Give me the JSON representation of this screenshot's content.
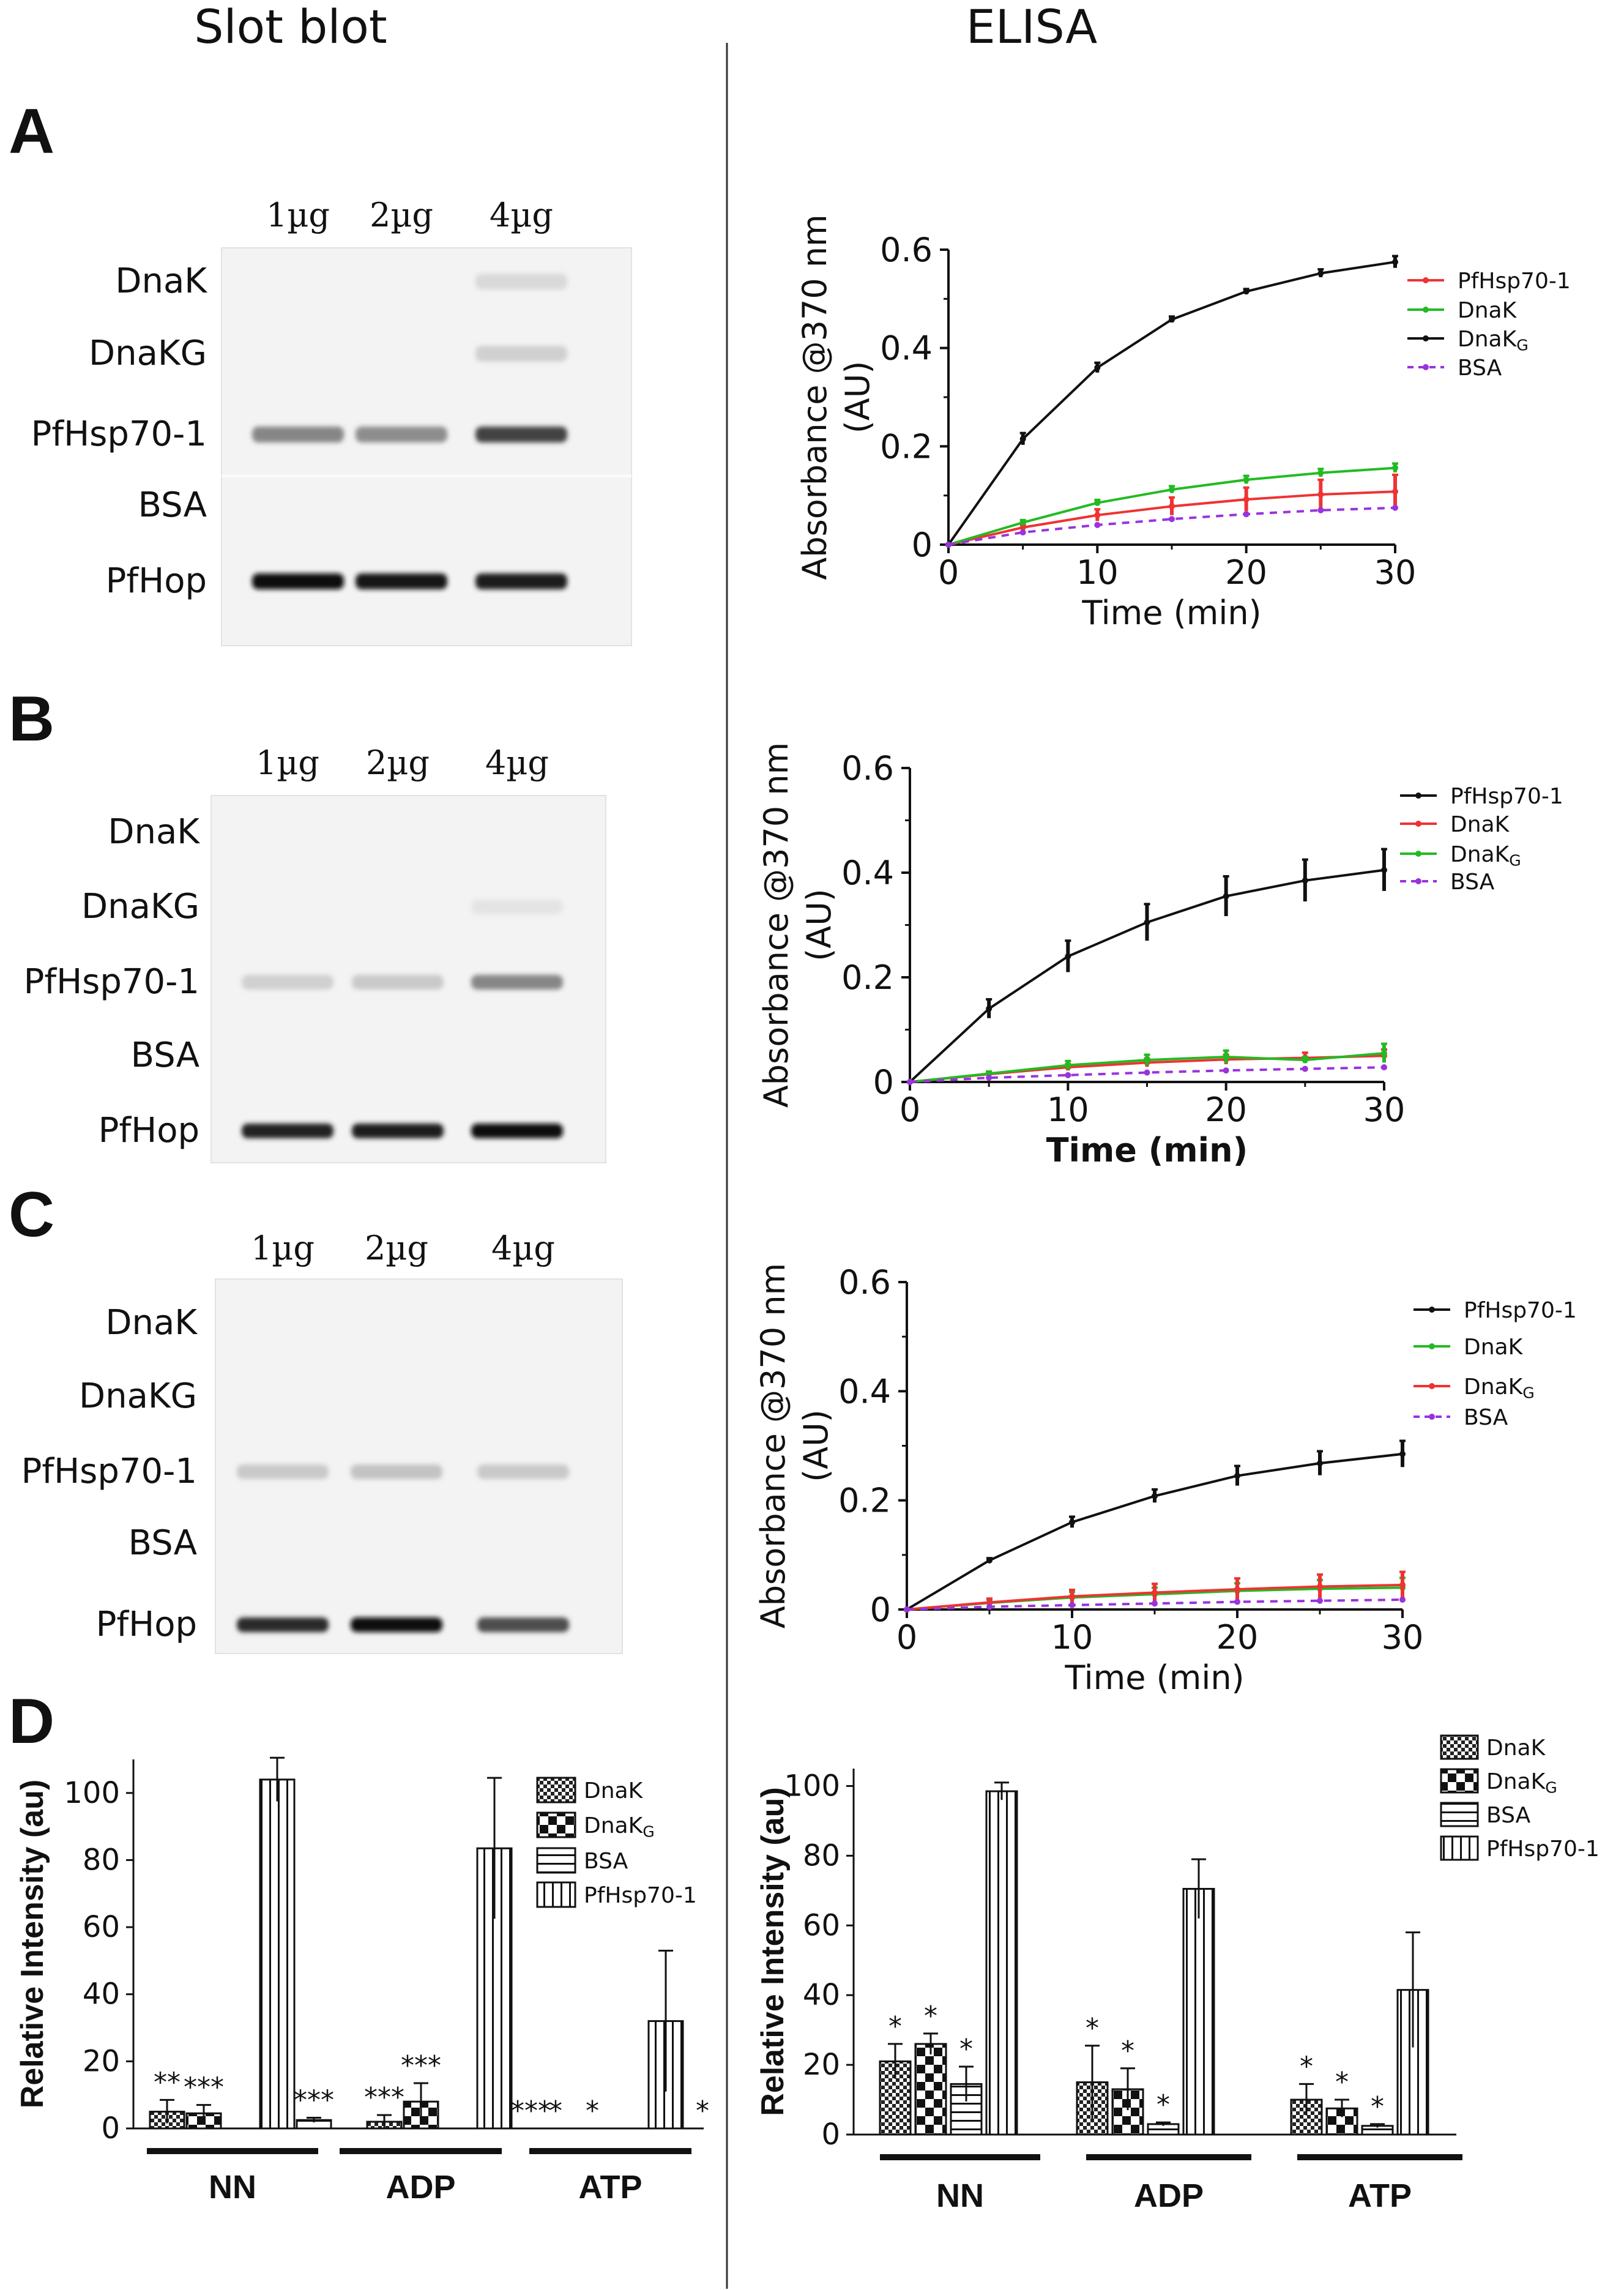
{
  "headers": {
    "left": "Slot blot",
    "right": "ELISA"
  },
  "panels": {
    "A": {
      "label": "A",
      "blot": {
        "amounts": [
          "1µg",
          "2µg",
          "4µg"
        ],
        "rows": [
          "DnaK",
          "DnaKG",
          "PfHsp70-1",
          "BSA",
          "PfHop"
        ],
        "intensity": [
          [
            0,
            0,
            0.08
          ],
          [
            0,
            0,
            0.12
          ],
          [
            0.45,
            0.42,
            0.75
          ],
          [
            0,
            0,
            0
          ],
          [
            1.0,
            0.95,
            0.92
          ]
        ]
      }
    },
    "B": {
      "label": "B",
      "blot": {
        "amounts": [
          "1µg",
          "2µg",
          "4µg"
        ],
        "rows": [
          "DnaK",
          "DnaKG",
          "PfHsp70-1",
          "BSA",
          "PfHop"
        ],
        "intensity": [
          [
            0,
            0,
            0
          ],
          [
            0,
            0,
            0.03
          ],
          [
            0.12,
            0.15,
            0.45
          ],
          [
            0,
            0,
            0
          ],
          [
            0.9,
            0.92,
            0.98
          ]
        ]
      }
    },
    "C": {
      "label": "C",
      "blot": {
        "amounts": [
          "1µg",
          "2µg",
          "4µg"
        ],
        "rows": [
          "DnaK",
          "DnaKG",
          "PfHsp70-1",
          "BSA",
          "PfHop"
        ],
        "intensity": [
          [
            0,
            0,
            0
          ],
          [
            0,
            0,
            0
          ],
          [
            0.15,
            0.18,
            0.15
          ],
          [
            0,
            0,
            0
          ],
          [
            0.85,
            0.98,
            0.7
          ]
        ]
      }
    },
    "D": {
      "label": "D"
    }
  },
  "chart_data": [
    {
      "id": "A-elisa",
      "type": "line",
      "xlabel": "Time (min)",
      "ylabel": "Absorbance @370 nm",
      "ylabel2": "(AU)",
      "x": [
        0,
        5,
        10,
        15,
        20,
        25,
        30
      ],
      "xlim": [
        0,
        30
      ],
      "ylim": [
        0,
        0.6
      ],
      "xticks": [
        0,
        10,
        20,
        30
      ],
      "yticks": [
        0,
        0.2,
        0.4,
        0.6
      ],
      "ytick_labels": [
        "0",
        "0.2",
        "0.4",
        "0.6"
      ],
      "series": [
        {
          "name": "PfHsp70-1",
          "sub": "",
          "color": "#ee3333",
          "dash": false,
          "values": [
            0,
            0.035,
            0.06,
            0.078,
            0.092,
            0.102,
            0.108
          ],
          "err": [
            0,
            0.006,
            0.012,
            0.018,
            0.024,
            0.03,
            0.034
          ]
        },
        {
          "name": "DnaK",
          "sub": "",
          "color": "#22bb22",
          "dash": false,
          "values": [
            0,
            0.045,
            0.085,
            0.112,
            0.132,
            0.146,
            0.156
          ],
          "err": [
            0,
            0.005,
            0.006,
            0.007,
            0.008,
            0.008,
            0.009
          ]
        },
        {
          "name": "DnaK",
          "sub": "G",
          "color": "#111111",
          "dash": false,
          "values": [
            0,
            0.215,
            0.36,
            0.458,
            0.515,
            0.552,
            0.575
          ],
          "err": [
            0,
            0.012,
            0.01,
            0.006,
            0.005,
            0.008,
            0.012
          ]
        },
        {
          "name": "BSA",
          "sub": "",
          "color": "#9933dd",
          "dash": true,
          "values": [
            0,
            0.025,
            0.04,
            0.052,
            0.062,
            0.07,
            0.075
          ],
          "err": [
            0,
            0,
            0,
            0,
            0,
            0,
            0
          ]
        }
      ]
    },
    {
      "id": "B-elisa",
      "type": "line",
      "xlabel": "Time (min)",
      "xlabel_bold": true,
      "ylabel": "Absorbance @370 nm",
      "ylabel2": "(AU)",
      "x": [
        0,
        5,
        10,
        15,
        20,
        25,
        30
      ],
      "xlim": [
        0,
        30
      ],
      "ylim": [
        0,
        0.6
      ],
      "xticks": [
        0,
        10,
        20,
        30
      ],
      "yticks": [
        0,
        0.2,
        0.4,
        0.6
      ],
      "ytick_labels": [
        "0",
        "0.2",
        "0.4",
        "0.6"
      ],
      "series": [
        {
          "name": "PfHsp70-1",
          "sub": "",
          "color": "#111111",
          "dash": false,
          "values": [
            0,
            0.14,
            0.24,
            0.305,
            0.355,
            0.385,
            0.405
          ],
          "err": [
            0,
            0.018,
            0.03,
            0.035,
            0.038,
            0.04,
            0.04
          ]
        },
        {
          "name": "DnaK",
          "sub": "",
          "color": "#ee3333",
          "dash": false,
          "values": [
            0,
            0.015,
            0.028,
            0.037,
            0.043,
            0.046,
            0.05
          ],
          "err": [
            0,
            0.004,
            0.006,
            0.008,
            0.009,
            0.01,
            0.012
          ]
        },
        {
          "name": "DnaK",
          "sub": "G",
          "color": "#22bb22",
          "dash": false,
          "values": [
            0,
            0.016,
            0.032,
            0.042,
            0.048,
            0.042,
            0.055
          ],
          "err": [
            0,
            0.004,
            0.008,
            0.01,
            0.012,
            0.006,
            0.018
          ]
        },
        {
          "name": "BSA",
          "sub": "",
          "color": "#9933dd",
          "dash": true,
          "values": [
            0,
            0.008,
            0.013,
            0.018,
            0.022,
            0.025,
            0.028
          ],
          "err": [
            0,
            0,
            0,
            0,
            0,
            0,
            0
          ]
        }
      ]
    },
    {
      "id": "C-elisa",
      "type": "line",
      "xlabel": "Time (min)",
      "ylabel": "Absorbance @370 nm",
      "ylabel2": "(AU)",
      "x": [
        0,
        5,
        10,
        15,
        20,
        25,
        30
      ],
      "xlim": [
        0,
        30
      ],
      "ylim": [
        0,
        0.6
      ],
      "xticks": [
        0,
        10,
        20,
        30
      ],
      "yticks": [
        0,
        0.2,
        0.4,
        0.6
      ],
      "ytick_labels": [
        "0",
        "0.2",
        "0.4",
        "0.6"
      ],
      "series": [
        {
          "name": "PfHsp70-1",
          "sub": "",
          "color": "#111111",
          "dash": false,
          "values": [
            0,
            0.09,
            0.16,
            0.208,
            0.245,
            0.268,
            0.285
          ],
          "err": [
            0,
            0.004,
            0.01,
            0.012,
            0.018,
            0.022,
            0.024
          ]
        },
        {
          "name": "DnaK",
          "sub": "",
          "color": "#22bb22",
          "dash": false,
          "values": [
            0,
            0.012,
            0.022,
            0.028,
            0.034,
            0.038,
            0.04
          ],
          "err": [
            0,
            0.006,
            0.01,
            0.012,
            0.014,
            0.016,
            0.018
          ]
        },
        {
          "name": "DnaK",
          "sub": "G",
          "color": "#ee3333",
          "dash": false,
          "values": [
            0,
            0.013,
            0.024,
            0.031,
            0.037,
            0.042,
            0.045
          ],
          "err": [
            0,
            0.007,
            0.012,
            0.016,
            0.02,
            0.022,
            0.024
          ]
        },
        {
          "name": "BSA",
          "sub": "",
          "color": "#9933dd",
          "dash": true,
          "values": [
            0,
            0.005,
            0.008,
            0.011,
            0.014,
            0.016,
            0.018
          ],
          "err": [
            0,
            0,
            0,
            0,
            0,
            0,
            0
          ]
        }
      ]
    },
    {
      "id": "D-slotblot",
      "type": "bar",
      "ylabel": "Relative  Intensity (au)",
      "ylim": [
        0,
        110
      ],
      "yticks": [
        0,
        20,
        40,
        60,
        80,
        100
      ],
      "categories": [
        "NN",
        "ADP",
        "ATP"
      ],
      "series": [
        {
          "name": "DnaK",
          "sub": "",
          "pattern": "fineCheck",
          "values": [
            5,
            2,
            0
          ],
          "err": [
            3.5,
            2,
            0
          ]
        },
        {
          "name": "DnaK",
          "sub": "G",
          "pattern": "bigCheck",
          "values": [
            4.5,
            8,
            0
          ],
          "err": [
            2.5,
            5.5,
            0
          ]
        },
        {
          "name": "BSA",
          "sub": "",
          "pattern": "hstripe",
          "values": [
            0,
            0,
            0
          ],
          "err": [
            0,
            0,
            0
          ]
        },
        {
          "name": "PfHsp70-1",
          "sub": "",
          "pattern": "vstripe",
          "values": [
            104,
            83.5,
            32
          ],
          "err": [
            6.5,
            21,
            21
          ]
        },
        {
          "name": "",
          "sub": "",
          "pattern": "hstripe",
          "values": [
            2.5,
            0,
            0
          ],
          "err": [
            0.7,
            0,
            0
          ]
        }
      ],
      "significance": [
        [
          "**",
          "***",
          "",
          "",
          "***"
        ],
        [
          "***",
          "***",
          "",
          "",
          "***"
        ],
        [
          "*",
          "*",
          "",
          "",
          "*"
        ]
      ]
    },
    {
      "id": "D-elisa",
      "type": "bar",
      "ylabel": "Relative  Intensity (au)",
      "ylim": [
        0,
        105
      ],
      "yticks": [
        0,
        20,
        40,
        60,
        80,
        100
      ],
      "categories": [
        "NN",
        "ADP",
        "ATP"
      ],
      "series": [
        {
          "name": "DnaK",
          "sub": "",
          "pattern": "fineCheck",
          "values": [
            21,
            15,
            10
          ],
          "err": [
            5,
            10.5,
            4.5
          ]
        },
        {
          "name": "DnaK",
          "sub": "G",
          "pattern": "bigCheck",
          "values": [
            26,
            13,
            7.5
          ],
          "err": [
            3,
            6,
            2.5
          ]
        },
        {
          "name": "BSA",
          "sub": "",
          "pattern": "hstripe",
          "values": [
            14.5,
            3,
            2.5
          ],
          "err": [
            5,
            0.5,
            0.5
          ]
        },
        {
          "name": "PfHsp70-1",
          "sub": "",
          "pattern": "vstripe",
          "values": [
            98.5,
            70.5,
            41.5
          ],
          "err": [
            2.5,
            8.5,
            16.5
          ]
        }
      ],
      "significance": [
        [
          "*",
          "*",
          "*",
          ""
        ],
        [
          "*",
          "*",
          "*",
          ""
        ],
        [
          "*",
          "*",
          "*",
          ""
        ]
      ]
    }
  ]
}
